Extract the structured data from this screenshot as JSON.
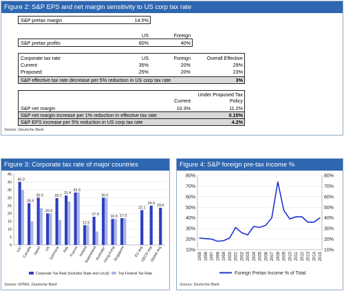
{
  "fig2": {
    "title": "Figure 2: S&P EPS and net margin sensitivity to US corp tax rate",
    "pretax_margin_label": "S&P pretax margin",
    "pretax_margin_value": "14.5%",
    "col_us": "US",
    "col_foreign": "Foreign",
    "profits_label": "S&P pretax profits",
    "profits_us": "60%",
    "profits_foreign": "40%",
    "tax_header": "Corporate tax rate",
    "tax_col_us": "US",
    "tax_col_foreign": "Foreign",
    "tax_col_overall": "Overall Effective",
    "current_label": "Current",
    "current_us": "35%",
    "current_foreign": "20%",
    "current_overall": "29%",
    "proposed_label": "Proposed",
    "proposed_us": "25%",
    "proposed_foreign": "20%",
    "proposed_overall": "23%",
    "eff_label": "S&P effective tax rate decrease per 5% reduction in US corp tax rate",
    "eff_value": "3%",
    "under_header_1": "Under Proposed Tax",
    "under_header_2": "Policy",
    "current_col": "Current",
    "net_margin_label": "S&P net margin",
    "net_margin_current": "10.3%",
    "net_margin_proposed": "11.2%",
    "nm_increase_label": "S&P net margin increase per 1% reduction in effective tax rate",
    "nm_increase_value": "0.15%",
    "eps_increase_label": "S&P EPS increase per 5% reduction in US corp tax rate",
    "eps_increase_value": "4.2%",
    "source": "Source: Deutsche Bank"
  },
  "fig3": {
    "title": "Figure 3: Corporate tax rate of major countries",
    "source": "Source: KPMG, Deutsche Bank"
  },
  "fig4": {
    "title": "Figure 4: S&P foreign pre-tax income %",
    "source": "Source: Deutsche Bank"
  },
  "chart_data": [
    {
      "type": "bar",
      "title": "Figure 3: Corporate tax rate of major countries",
      "categories": [
        "US",
        "Canada",
        "Japan",
        "UK",
        "Germany",
        "Italy",
        "France",
        "Ireland",
        "Switzerland",
        "Australia",
        "Hong Kong",
        "Singapore",
        "",
        "EU avg",
        "OECD avg",
        "Global avg"
      ],
      "category_labels": [
        "US*",
        "Canada",
        "Japan",
        "UK",
        "Germany",
        "Italy",
        "France",
        "Ireland",
        "Switzerland",
        "Australia*",
        "Hong Kong",
        "Singapore",
        "",
        "EU avg",
        "OECD avg",
        "Global avg"
      ],
      "series": [
        {
          "name": "Corporate Tax Rate (Includes State and Local)",
          "color": "#2e3fbf",
          "values": [
            40.0,
            26.5,
            30.0,
            20.0,
            29.7,
            31.4,
            33.3,
            12.5,
            17.9,
            30.0,
            16.5,
            17.0,
            null,
            22.1,
            24.9,
            23.6
          ]
        },
        {
          "name": "Top Federal Tax Rate",
          "color": "#a9b4e8",
          "values": [
            35,
            15,
            23.4,
            20,
            15.8,
            27.5,
            33.3,
            12.5,
            8.5,
            30,
            16.5,
            17,
            null,
            null,
            null,
            null
          ]
        }
      ],
      "data_labels": [
        "40.0",
        "26.5",
        "30.0",
        "20.0",
        "29.7",
        "31.4",
        "33.3",
        "12.5",
        "17.9",
        "30.0",
        "16.5",
        "17.0",
        "",
        "22.1",
        "24.9",
        "23.6"
      ],
      "ylim": [
        0,
        45
      ],
      "yticks": [
        0,
        5,
        10,
        15,
        20,
        25,
        30,
        35,
        40,
        45
      ],
      "legend_position": "bottom"
    },
    {
      "type": "line",
      "title": "Figure 4: S&P foreign pre-tax income %",
      "x": [
        "1995",
        "1996",
        "1997",
        "1998",
        "1999",
        "2000",
        "2001",
        "2002",
        "2003",
        "2004",
        "2005",
        "2006",
        "2007",
        "2008",
        "2009",
        "2010",
        "2011",
        "2012",
        "2013",
        "2014",
        "2015"
      ],
      "series": [
        {
          "name": "Foreign Pretax Income % of Total",
          "color": "#1f2fd6",
          "values": [
            21,
            20.5,
            20,
            18,
            18.5,
            21,
            31,
            26,
            24,
            32,
            31,
            33,
            40,
            74,
            47,
            39,
            41,
            41,
            36,
            36,
            40
          ]
        }
      ],
      "ylim": [
        10,
        80
      ],
      "yticks": [
        "10%",
        "20%",
        "30%",
        "40%",
        "50%",
        "60%",
        "70%",
        "80%"
      ],
      "y_axis_both_sides": true,
      "legend_position": "bottom"
    }
  ]
}
